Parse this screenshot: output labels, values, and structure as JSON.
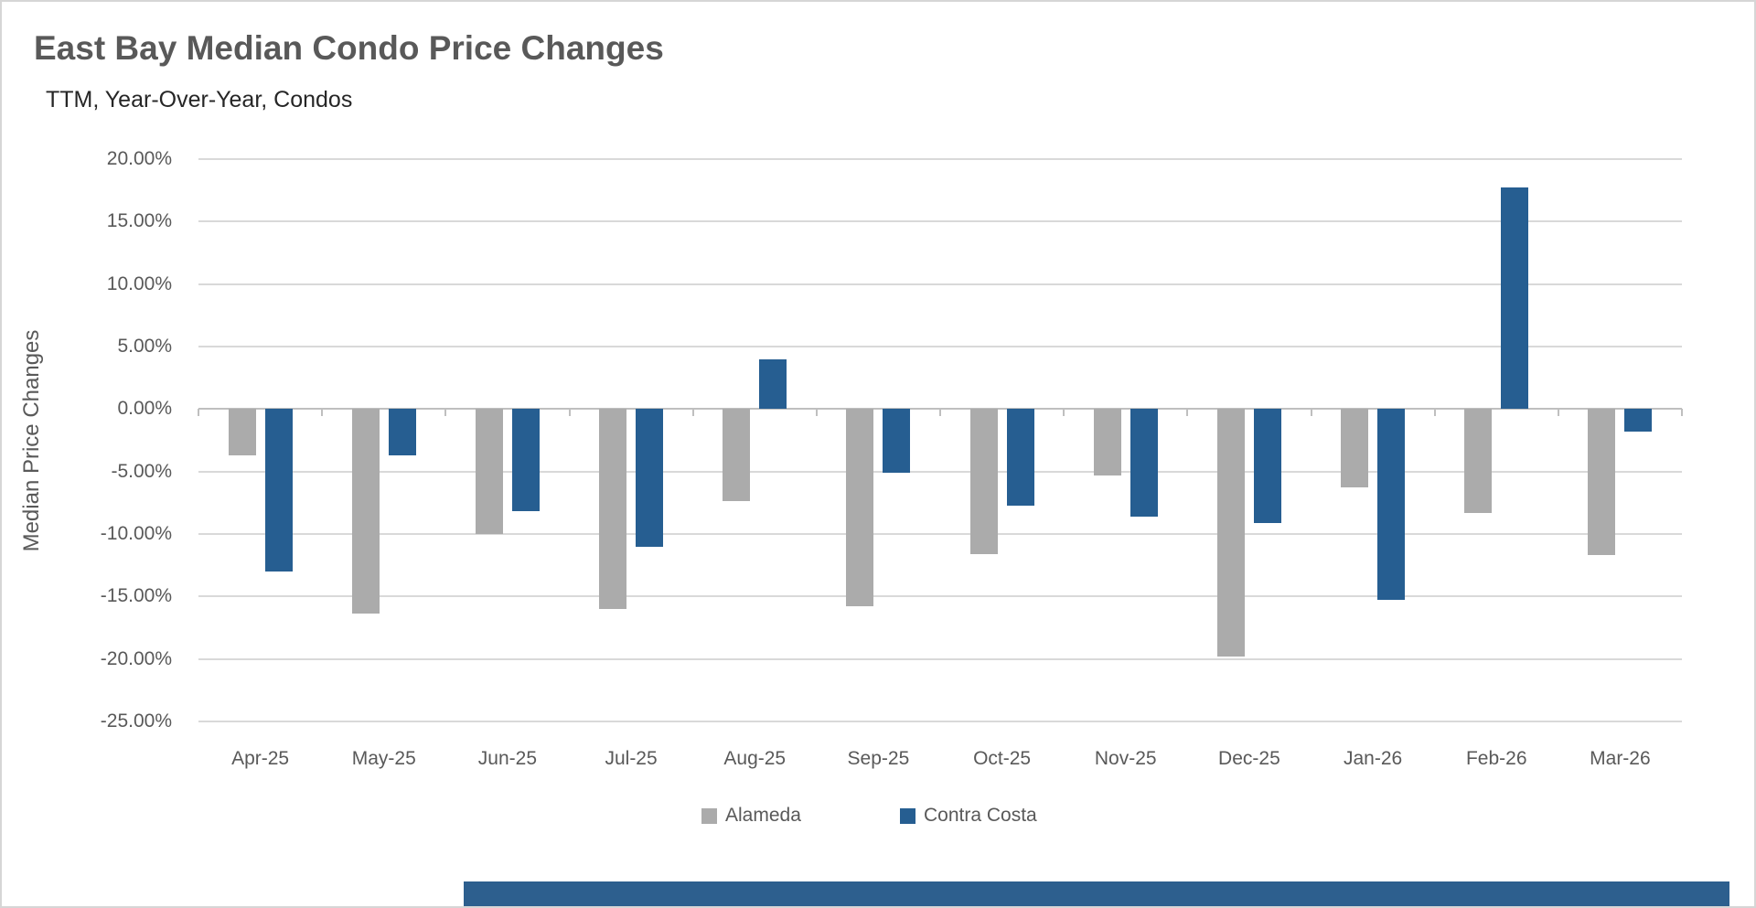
{
  "header": {
    "title": "East Bay Median Condo Price Changes",
    "subtitle": "TTM, Year-Over-Year, Condos"
  },
  "colors": {
    "alameda": "#ABABAB",
    "contra_costa": "#265E91",
    "gridline": "#D9D9D9",
    "zero_line": "#BFBFBF",
    "text_gray": "#595959",
    "scrollbar_thumb": "#2D5F8E"
  },
  "chart_data": {
    "type": "bar",
    "title": "East Bay Median Condo Price Changes",
    "subtitle": "TTM, Year-Over-Year, Condos",
    "xlabel": "",
    "ylabel": "Median Price Changes",
    "categories": [
      "Apr-25",
      "May-25",
      "Jun-25",
      "Jul-25",
      "Aug-25",
      "Sep-25",
      "Oct-25",
      "Nov-25",
      "Dec-25",
      "Jan-26",
      "Feb-26",
      "Mar-26"
    ],
    "series": [
      {
        "name": "Alameda",
        "color": "#ABABAB",
        "values": [
          -3.7,
          -16.4,
          -10.0,
          -16.0,
          -7.4,
          -15.8,
          -11.6,
          -5.3,
          -19.8,
          -6.3,
          -8.3,
          -11.7
        ]
      },
      {
        "name": "Contra Costa",
        "color": "#265E91",
        "values": [
          -13.0,
          -3.7,
          -8.2,
          -11.0,
          4.0,
          -5.1,
          -7.7,
          -8.6,
          -9.1,
          -15.3,
          17.7,
          -1.8
        ]
      }
    ],
    "ylim": [
      -25,
      20
    ],
    "ytick_step": 5,
    "ytick_labels": [
      "20.00%",
      "15.00%",
      "10.00%",
      "5.00%",
      "0.00%",
      "-5.00%",
      "-10.00%",
      "-15.00%",
      "-20.00%",
      "-25.00%"
    ],
    "value_unit": "percent",
    "grid": true,
    "legend_position": "bottom"
  },
  "legend": {
    "items": [
      {
        "label": "Alameda",
        "color": "#ABABAB"
      },
      {
        "label": "Contra Costa",
        "color": "#265E91"
      }
    ]
  }
}
